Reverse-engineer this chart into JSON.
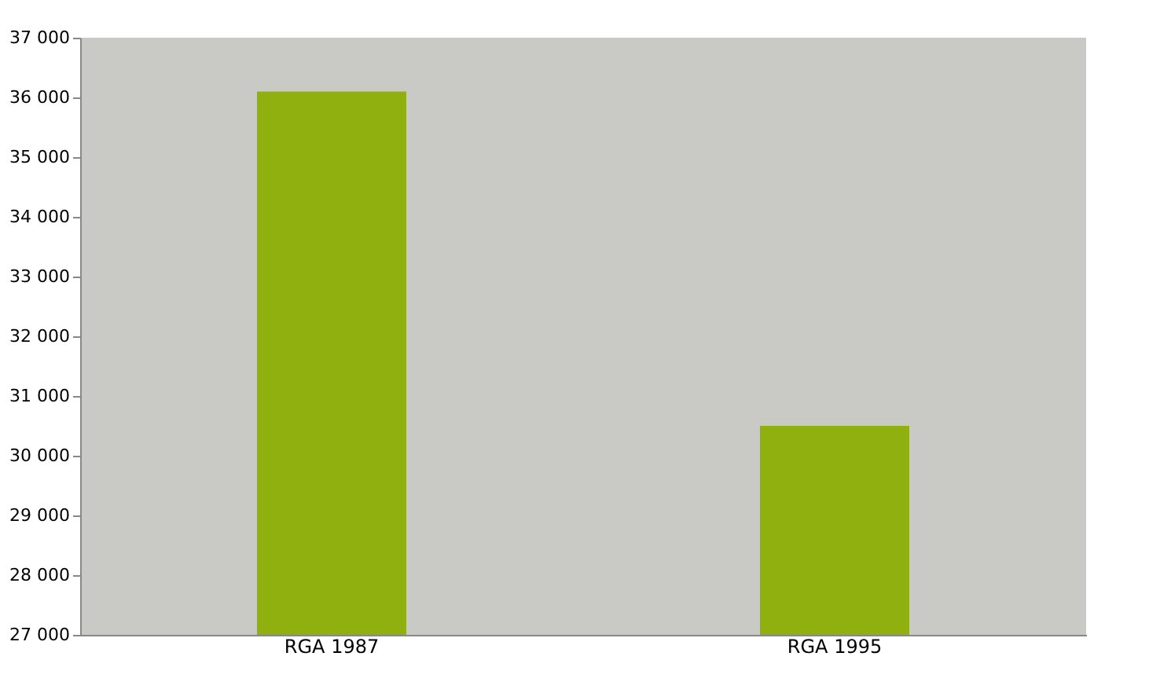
{
  "chart_data": {
    "type": "bar",
    "categories": [
      "RGA 1987",
      "RGA 1995"
    ],
    "values": [
      36100,
      30500
    ],
    "color": "#8fb00e",
    "ylim": [
      27000,
      37000
    ],
    "yticks": [
      {
        "value": 27000,
        "label": "27 000"
      },
      {
        "value": 28000,
        "label": "28 000"
      },
      {
        "value": 29000,
        "label": "29 000"
      },
      {
        "value": 30000,
        "label": "30 000"
      },
      {
        "value": 31000,
        "label": "31 000"
      },
      {
        "value": 32000,
        "label": "32 000"
      },
      {
        "value": 33000,
        "label": "33 000"
      },
      {
        "value": 34000,
        "label": "34 000"
      },
      {
        "value": 35000,
        "label": "35 000"
      },
      {
        "value": 36000,
        "label": "36 000"
      },
      {
        "value": 37000,
        "label": "37 000"
      }
    ],
    "grid": false
  }
}
